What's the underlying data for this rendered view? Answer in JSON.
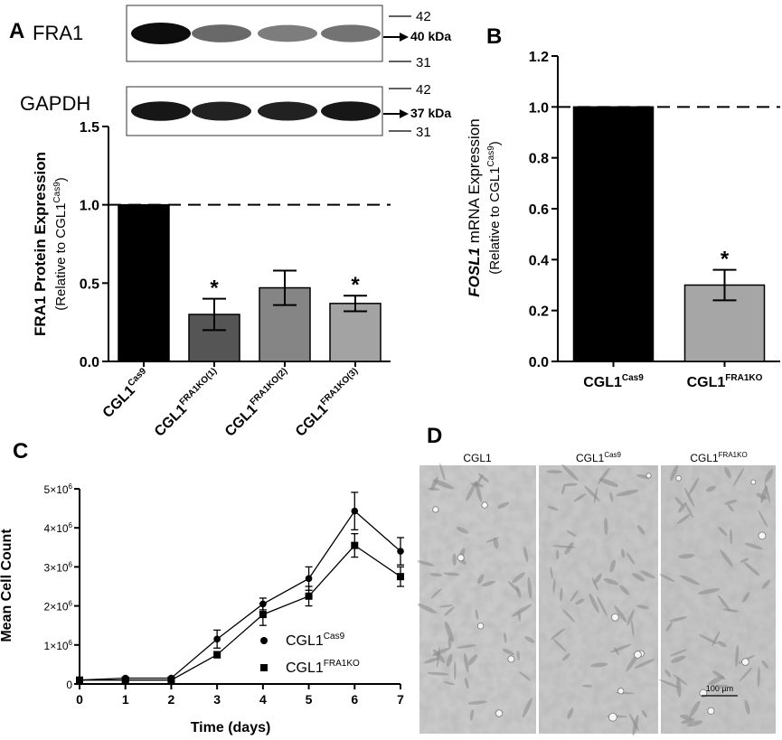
{
  "panel_labels": {
    "a": "A",
    "b": "B",
    "c": "C",
    "d": "D"
  },
  "western_blot": {
    "rows": [
      {
        "name": "FRA1",
        "band_weights": [
          1.0,
          0.55,
          0.45,
          0.5
        ],
        "ladder_top": "42",
        "ladder_bottom": "31",
        "size_label": "40 kDa"
      },
      {
        "name": "GAPDH",
        "band_weights": [
          0.95,
          0.9,
          0.9,
          0.95
        ],
        "ladder_top": "42",
        "ladder_bottom": "31",
        "size_label": "37 kDa"
      }
    ]
  },
  "chart_data": [
    {
      "id": "A",
      "type": "bar",
      "ylabel_main": "FRA1 Protein Expression",
      "ylabel_sub": "(Relative to CGL1",
      "ylabel_sup": "Cas9",
      "ylabel_close": ")",
      "ylim": [
        0,
        1.5
      ],
      "yticks": [
        "0.0",
        "0.5",
        "1.0",
        "1.5"
      ],
      "reference_line": 1.0,
      "categories": [
        {
          "base": "CGL1",
          "sup": "Cas9"
        },
        {
          "base": "CGL1",
          "sup": "FRA1KO(1)"
        },
        {
          "base": "CGL1",
          "sup": "FRA1KO(2)"
        },
        {
          "base": "CGL1",
          "sup": "FRA1KO(3)"
        }
      ],
      "values": [
        1.0,
        0.3,
        0.47,
        0.37
      ],
      "errors": [
        0.0,
        0.1,
        0.11,
        0.05
      ],
      "significance": [
        "",
        "*",
        "",
        "*"
      ],
      "colors": [
        "#000000",
        "#555555",
        "#858585",
        "#a3a3a3"
      ]
    },
    {
      "id": "B",
      "type": "bar",
      "ylabel_italic": "FOSL1",
      "ylabel_main": " mRNA Expression",
      "ylabel_sub": "(Relative to CGL1",
      "ylabel_sup": "Cas9",
      "ylabel_close": ")",
      "ylim": [
        0,
        1.2
      ],
      "yticks": [
        "0.0",
        "0.2",
        "0.4",
        "0.6",
        "0.8",
        "1.0",
        "1.2"
      ],
      "reference_line": 1.0,
      "categories": [
        {
          "base": "CGL1",
          "sup": "Cas9"
        },
        {
          "base": "CGL1",
          "sup": "FRA1KO"
        }
      ],
      "values": [
        1.0,
        0.3
      ],
      "errors": [
        0.0,
        0.06
      ],
      "significance": [
        "",
        "*"
      ],
      "colors": [
        "#000000",
        "#a6a6a6"
      ]
    },
    {
      "id": "C",
      "type": "line",
      "ylabel": "Mean Cell Count",
      "xlabel": "Time (days)",
      "xlim": [
        0,
        7
      ],
      "xticks": [
        "0",
        "1",
        "2",
        "3",
        "4",
        "5",
        "6",
        "7"
      ],
      "ylim": [
        0,
        5000000
      ],
      "yticks": [
        "0",
        "1×10",
        "2×10",
        "3×10",
        "4×10",
        "5×10"
      ],
      "ytick_exp": "6",
      "x": [
        0,
        1,
        2,
        3,
        4,
        5,
        6,
        7
      ],
      "series": [
        {
          "name_base": "CGL1",
          "name_sup": "Cas9",
          "marker": "circle",
          "values": [
            100000,
            150000,
            150000,
            1150000,
            2050000,
            2700000,
            4430000,
            3400000
          ],
          "errors": [
            20000,
            20000,
            20000,
            230000,
            150000,
            300000,
            480000,
            350000
          ]
        },
        {
          "name_base": "CGL1",
          "name_sup": "FRA1KO",
          "marker": "square",
          "values": [
            100000,
            100000,
            100000,
            750000,
            1780000,
            2250000,
            3550000,
            2750000
          ],
          "errors": [
            20000,
            20000,
            20000,
            80000,
            280000,
            250000,
            300000,
            250000
          ]
        }
      ]
    }
  ],
  "micrographs": {
    "titles": [
      {
        "base": "CGL1",
        "sup": ""
      },
      {
        "base": "CGL1",
        "sup": "Cas9"
      },
      {
        "base": "CGL1",
        "sup": "FRA1KO"
      }
    ],
    "scale_bar": "100 µm"
  }
}
